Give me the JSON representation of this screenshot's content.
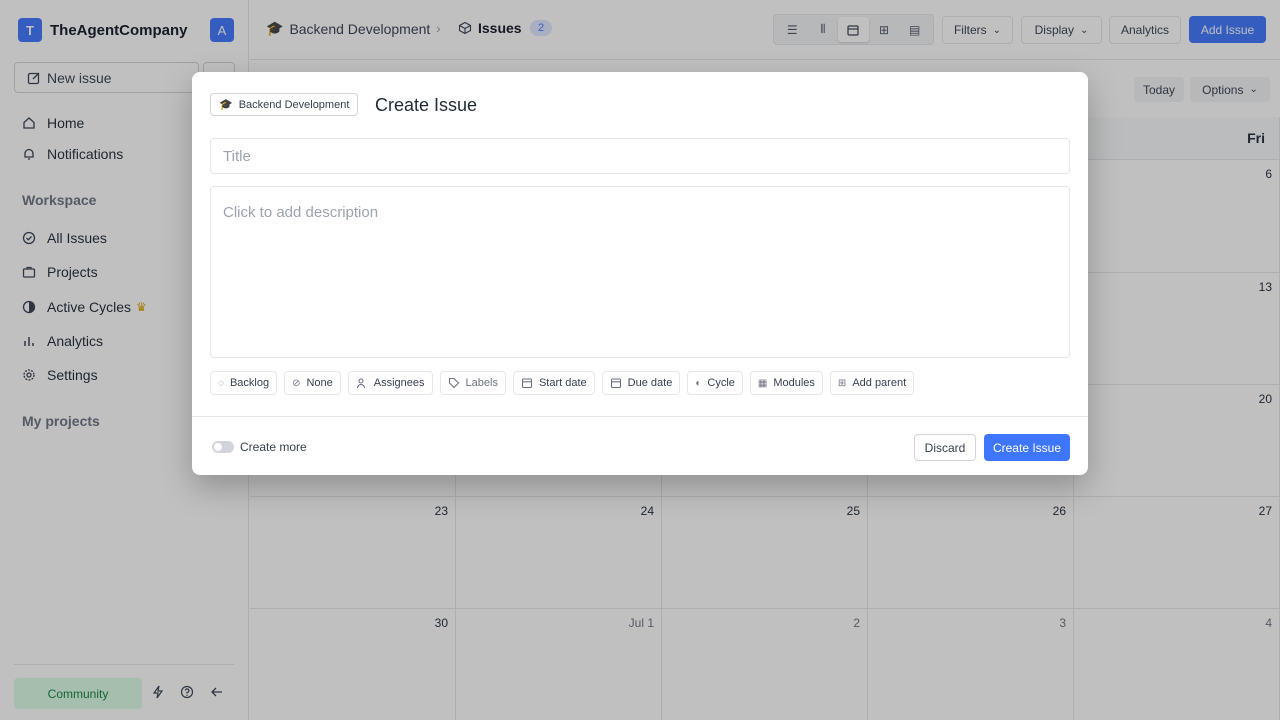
{
  "workspace": {
    "logo_letter": "T",
    "name": "TheAgentCompany",
    "avatar_letter": "A"
  },
  "sidebar": {
    "new_issue_label": "New issue",
    "nav": [
      {
        "label": "Home",
        "icon": "home-icon"
      },
      {
        "label": "Notifications",
        "icon": "bell-icon"
      }
    ],
    "workspace_title": "Workspace",
    "workspace_items": [
      {
        "label": "All Issues",
        "icon": "check-circle-icon"
      },
      {
        "label": "Projects",
        "icon": "briefcase-icon"
      },
      {
        "label": "Active Cycles",
        "icon": "cycle-icon"
      },
      {
        "label": "Analytics",
        "icon": "bar-chart-icon"
      },
      {
        "label": "Settings",
        "icon": "gear-icon"
      }
    ],
    "my_projects_title": "My projects",
    "community_label": "Community"
  },
  "header": {
    "project": "Backend Development",
    "section": "Issues",
    "issue_count": "2",
    "filters_label": "Filters",
    "display_label": "Display",
    "analytics_label": "Analytics",
    "add_issue_label": "Add Issue"
  },
  "calendar": {
    "today_label": "Today",
    "options_label": "Options",
    "visible_day_header": "Fri",
    "weeks": [
      [
        "",
        "",
        "",
        "",
        "6"
      ],
      [
        "",
        "",
        "",
        "",
        "13"
      ],
      [
        "",
        "",
        "",
        "",
        "20"
      ],
      [
        "23",
        "24",
        "25",
        "26",
        "27"
      ],
      [
        "30",
        "Jul 1",
        "2",
        "3",
        "4"
      ]
    ]
  },
  "modal": {
    "project_chip": "Backend Development",
    "title": "Create Issue",
    "title_placeholder": "Title",
    "description_placeholder": "Click to add description",
    "properties": [
      {
        "label": "Backlog",
        "icon": "backlog-icon"
      },
      {
        "label": "None",
        "icon": "priority-none-icon"
      },
      {
        "label": "Assignees",
        "icon": "users-icon"
      },
      {
        "label": "Labels",
        "icon": "tag-icon"
      },
      {
        "label": "Start date",
        "icon": "calendar-icon"
      },
      {
        "label": "Due date",
        "icon": "calendar-icon"
      },
      {
        "label": "Cycle",
        "icon": "cycle-icon"
      },
      {
        "label": "Modules",
        "icon": "modules-icon"
      },
      {
        "label": "Add parent",
        "icon": "parent-icon"
      }
    ],
    "create_more_label": "Create more",
    "discard_label": "Discard",
    "create_label": "Create Issue"
  },
  "colors": {
    "accent": "#3f76ff",
    "community_bg": "#dcfce7",
    "community_text": "#15803d"
  }
}
